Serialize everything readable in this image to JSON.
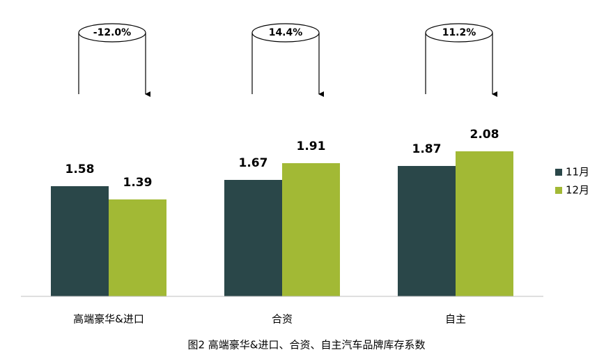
{
  "chart_data": {
    "type": "bar",
    "caption": "图2 高端豪华&进口、合资、自主汽车品牌库存系数",
    "categories": [
      "高端豪华&进口",
      "合资",
      "自主"
    ],
    "series": [
      {
        "name": "11月",
        "color": "#2a4749",
        "values": [
          1.58,
          1.67,
          1.87
        ]
      },
      {
        "name": "12月",
        "color": "#a2b935",
        "values": [
          1.39,
          1.91,
          2.08
        ]
      }
    ],
    "annotations": [
      "-12.0%",
      "14.4%",
      "11.2%"
    ],
    "ylim": [
      0,
      2.5
    ],
    "legend": "right"
  }
}
